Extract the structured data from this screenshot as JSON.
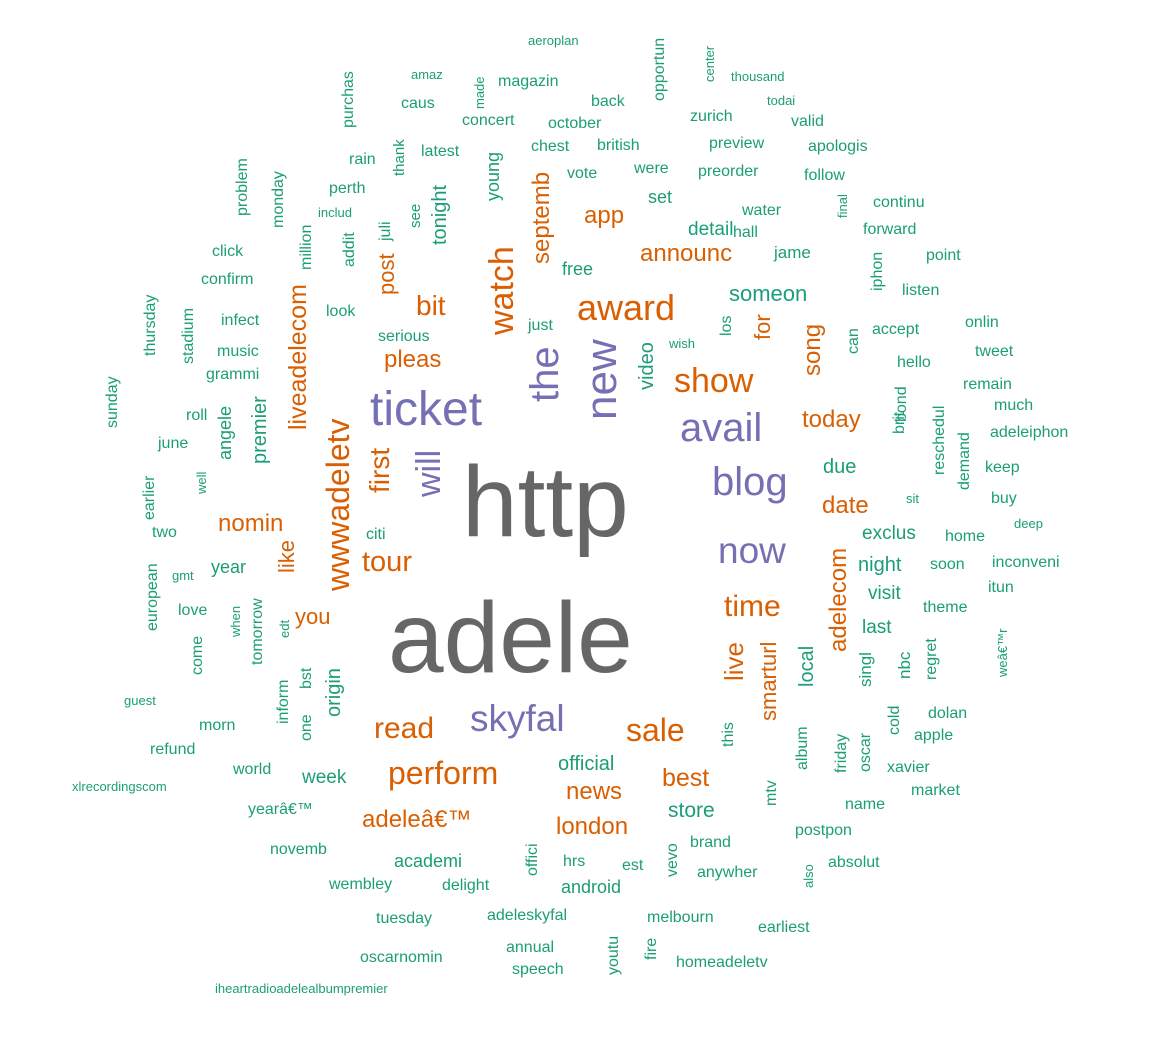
{
  "palette": {
    "background": "#ffffff",
    "teal": "#1b9e77",
    "orange": "#d95f02",
    "purple": "#7570b3",
    "grey": "#666666"
  },
  "wordcloud": {
    "words": [
      {
        "t": "http",
        "c": "#666666"
      },
      {
        "t": "adele",
        "c": "#666666"
      },
      {
        "t": "ticket",
        "c": "#7570b3"
      },
      {
        "t": "the",
        "c": "#7570b3"
      },
      {
        "t": "new",
        "c": "#7570b3"
      },
      {
        "t": "avail",
        "c": "#7570b3"
      },
      {
        "t": "blog",
        "c": "#7570b3"
      },
      {
        "t": "now",
        "c": "#7570b3"
      },
      {
        "t": "skyfal",
        "c": "#7570b3"
      },
      {
        "t": "will",
        "c": "#7570b3"
      },
      {
        "t": "wwwadeletv",
        "c": "#d95f02"
      },
      {
        "t": "award",
        "c": "#d95f02"
      },
      {
        "t": "show",
        "c": "#d95f02"
      },
      {
        "t": "watch",
        "c": "#d95f02"
      },
      {
        "t": "perform",
        "c": "#d95f02"
      },
      {
        "t": "sale",
        "c": "#d95f02"
      },
      {
        "t": "time",
        "c": "#d95f02"
      },
      {
        "t": "read",
        "c": "#d95f02"
      },
      {
        "t": "tour",
        "c": "#d95f02"
      },
      {
        "t": "first",
        "c": "#d95f02"
      },
      {
        "t": "bit",
        "c": "#d95f02"
      },
      {
        "t": "live",
        "c": "#d95f02"
      },
      {
        "t": "liveadelecom",
        "c": "#d95f02"
      },
      {
        "t": "adelecom",
        "c": "#d95f02"
      },
      {
        "t": "pleas",
        "c": "#d95f02"
      },
      {
        "t": "announc",
        "c": "#d95f02"
      },
      {
        "t": "app",
        "c": "#d95f02"
      },
      {
        "t": "septemb",
        "c": "#d95f02"
      },
      {
        "t": "post",
        "c": "#d95f02"
      },
      {
        "t": "date",
        "c": "#d95f02"
      },
      {
        "t": "today",
        "c": "#d95f02"
      },
      {
        "t": "song",
        "c": "#d95f02"
      },
      {
        "t": "for",
        "c": "#d95f02"
      },
      {
        "t": "nomin",
        "c": "#d95f02"
      },
      {
        "t": "like",
        "c": "#d95f02"
      },
      {
        "t": "you",
        "c": "#d95f02"
      },
      {
        "t": "news",
        "c": "#d95f02"
      },
      {
        "t": "best",
        "c": "#d95f02"
      },
      {
        "t": "london",
        "c": "#d95f02"
      },
      {
        "t": "adeleâ€™",
        "c": "#d95f02"
      },
      {
        "t": "smarturl",
        "c": "#d95f02"
      },
      {
        "t": "someon",
        "c": "#1b9e77"
      },
      {
        "t": "video",
        "c": "#1b9e77"
      },
      {
        "t": "due",
        "c": "#1b9e77"
      },
      {
        "t": "detail",
        "c": "#1b9e77"
      },
      {
        "t": "exclus",
        "c": "#1b9e77"
      },
      {
        "t": "night",
        "c": "#1b9e77"
      },
      {
        "t": "visit",
        "c": "#1b9e77"
      },
      {
        "t": "last",
        "c": "#1b9e77"
      },
      {
        "t": "local",
        "c": "#1b9e77"
      },
      {
        "t": "singl",
        "c": "#1b9e77"
      },
      {
        "t": "nbc",
        "c": "#1b9e77"
      },
      {
        "t": "store",
        "c": "#1b9e77"
      },
      {
        "t": "official",
        "c": "#1b9e77"
      },
      {
        "t": "origin",
        "c": "#1b9e77"
      },
      {
        "t": "week",
        "c": "#1b9e77"
      },
      {
        "t": "premier",
        "c": "#1b9e77"
      },
      {
        "t": "angele",
        "c": "#1b9e77"
      },
      {
        "t": "year",
        "c": "#1b9e77"
      },
      {
        "t": "tonight",
        "c": "#1b9e77"
      },
      {
        "t": "young",
        "c": "#1b9e77"
      },
      {
        "t": "set",
        "c": "#1b9e77"
      },
      {
        "t": "free",
        "c": "#1b9e77"
      },
      {
        "t": "jame",
        "c": "#1b9e77"
      },
      {
        "t": "water",
        "c": "#1b9e77"
      },
      {
        "t": "hall",
        "c": "#1b9e77"
      },
      {
        "t": "los",
        "c": "#1b9e77"
      },
      {
        "t": "can",
        "c": "#1b9e77"
      },
      {
        "t": "wish",
        "c": "#1b9e77"
      },
      {
        "t": "just",
        "c": "#1b9e77"
      },
      {
        "t": "serious",
        "c": "#1b9e77"
      },
      {
        "t": "look",
        "c": "#1b9e77"
      },
      {
        "t": "addit",
        "c": "#1b9e77"
      },
      {
        "t": "juli",
        "c": "#1b9e77"
      },
      {
        "t": "see",
        "c": "#1b9e77"
      },
      {
        "t": "million",
        "c": "#1b9e77"
      },
      {
        "t": "includ",
        "c": "#1b9e77"
      },
      {
        "t": "perth",
        "c": "#1b9e77"
      },
      {
        "t": "rain",
        "c": "#1b9e77"
      },
      {
        "t": "thank",
        "c": "#1b9e77"
      },
      {
        "t": "latest",
        "c": "#1b9e77"
      },
      {
        "t": "purchas",
        "c": "#1b9e77"
      },
      {
        "t": "caus",
        "c": "#1b9e77"
      },
      {
        "t": "amaz",
        "c": "#1b9e77"
      },
      {
        "t": "made",
        "c": "#1b9e77"
      },
      {
        "t": "magazin",
        "c": "#1b9e77"
      },
      {
        "t": "aeroplan",
        "c": "#1b9e77"
      },
      {
        "t": "concert",
        "c": "#1b9e77"
      },
      {
        "t": "back",
        "c": "#1b9e77"
      },
      {
        "t": "october",
        "c": "#1b9e77"
      },
      {
        "t": "opportun",
        "c": "#1b9e77"
      },
      {
        "t": "center",
        "c": "#1b9e77"
      },
      {
        "t": "thousand",
        "c": "#1b9e77"
      },
      {
        "t": "todai",
        "c": "#1b9e77"
      },
      {
        "t": "zurich",
        "c": "#1b9e77"
      },
      {
        "t": "valid",
        "c": "#1b9e77"
      },
      {
        "t": "chest",
        "c": "#1b9e77"
      },
      {
        "t": "british",
        "c": "#1b9e77"
      },
      {
        "t": "preview",
        "c": "#1b9e77"
      },
      {
        "t": "apologis",
        "c": "#1b9e77"
      },
      {
        "t": "vote",
        "c": "#1b9e77"
      },
      {
        "t": "were",
        "c": "#1b9e77"
      },
      {
        "t": "preorder",
        "c": "#1b9e77"
      },
      {
        "t": "follow",
        "c": "#1b9e77"
      },
      {
        "t": "final",
        "c": "#1b9e77"
      },
      {
        "t": "continu",
        "c": "#1b9e77"
      },
      {
        "t": "forward",
        "c": "#1b9e77"
      },
      {
        "t": "point",
        "c": "#1b9e77"
      },
      {
        "t": "iphon",
        "c": "#1b9e77"
      },
      {
        "t": "listen",
        "c": "#1b9e77"
      },
      {
        "t": "onlin",
        "c": "#1b9e77"
      },
      {
        "t": "accept",
        "c": "#1b9e77"
      },
      {
        "t": "tweet",
        "c": "#1b9e77"
      },
      {
        "t": "hello",
        "c": "#1b9e77"
      },
      {
        "t": "remain",
        "c": "#1b9e77"
      },
      {
        "t": "much",
        "c": "#1b9e77"
      },
      {
        "t": "adeleiphon",
        "c": "#1b9e77"
      },
      {
        "t": "bond",
        "c": "#1b9e77"
      },
      {
        "t": "brit",
        "c": "#1b9e77"
      },
      {
        "t": "reschedul",
        "c": "#1b9e77"
      },
      {
        "t": "demand",
        "c": "#1b9e77"
      },
      {
        "t": "keep",
        "c": "#1b9e77"
      },
      {
        "t": "buy",
        "c": "#1b9e77"
      },
      {
        "t": "sit",
        "c": "#1b9e77"
      },
      {
        "t": "deep",
        "c": "#1b9e77"
      },
      {
        "t": "home",
        "c": "#1b9e77"
      },
      {
        "t": "inconveni",
        "c": "#1b9e77"
      },
      {
        "t": "soon",
        "c": "#1b9e77"
      },
      {
        "t": "itun",
        "c": "#1b9e77"
      },
      {
        "t": "theme",
        "c": "#1b9e77"
      },
      {
        "t": "weâ€™r",
        "c": "#1b9e77"
      },
      {
        "t": "regret",
        "c": "#1b9e77"
      },
      {
        "t": "dolan",
        "c": "#1b9e77"
      },
      {
        "t": "apple",
        "c": "#1b9e77"
      },
      {
        "t": "cold",
        "c": "#1b9e77"
      },
      {
        "t": "oscar",
        "c": "#1b9e77"
      },
      {
        "t": "xavier",
        "c": "#1b9e77"
      },
      {
        "t": "market",
        "c": "#1b9e77"
      },
      {
        "t": "name",
        "c": "#1b9e77"
      },
      {
        "t": "friday",
        "c": "#1b9e77"
      },
      {
        "t": "album",
        "c": "#1b9e77"
      },
      {
        "t": "mtv",
        "c": "#1b9e77"
      },
      {
        "t": "this",
        "c": "#1b9e77"
      },
      {
        "t": "postpon",
        "c": "#1b9e77"
      },
      {
        "t": "brand",
        "c": "#1b9e77"
      },
      {
        "t": "absolut",
        "c": "#1b9e77"
      },
      {
        "t": "anywher",
        "c": "#1b9e77"
      },
      {
        "t": "also",
        "c": "#1b9e77"
      },
      {
        "t": "vevo",
        "c": "#1b9e77"
      },
      {
        "t": "est",
        "c": "#1b9e77"
      },
      {
        "t": "hrs",
        "c": "#1b9e77"
      },
      {
        "t": "android",
        "c": "#1b9e77"
      },
      {
        "t": "offici",
        "c": "#1b9e77"
      },
      {
        "t": "academi",
        "c": "#1b9e77"
      },
      {
        "t": "delight",
        "c": "#1b9e77"
      },
      {
        "t": "wembley",
        "c": "#1b9e77"
      },
      {
        "t": "novemb",
        "c": "#1b9e77"
      },
      {
        "t": "tuesday",
        "c": "#1b9e77"
      },
      {
        "t": "adeleskyfal",
        "c": "#1b9e77"
      },
      {
        "t": "melbourn",
        "c": "#1b9e77"
      },
      {
        "t": "earliest",
        "c": "#1b9e77"
      },
      {
        "t": "annual",
        "c": "#1b9e77"
      },
      {
        "t": "oscarnomin",
        "c": "#1b9e77"
      },
      {
        "t": "speech",
        "c": "#1b9e77"
      },
      {
        "t": "youtu",
        "c": "#1b9e77"
      },
      {
        "t": "fire",
        "c": "#1b9e77"
      },
      {
        "t": "homeadeletv",
        "c": "#1b9e77"
      },
      {
        "t": "iheartradioadelealbumpremier",
        "c": "#1b9e77"
      },
      {
        "t": "yearâ€™",
        "c": "#1b9e77"
      },
      {
        "t": "world",
        "c": "#1b9e77"
      },
      {
        "t": "refund",
        "c": "#1b9e77"
      },
      {
        "t": "xlrecordingscom",
        "c": "#1b9e77"
      },
      {
        "t": "guest",
        "c": "#1b9e77"
      },
      {
        "t": "morn",
        "c": "#1b9e77"
      },
      {
        "t": "inform",
        "c": "#1b9e77"
      },
      {
        "t": "one",
        "c": "#1b9e77"
      },
      {
        "t": "bst",
        "c": "#1b9e77"
      },
      {
        "t": "edt",
        "c": "#1b9e77"
      },
      {
        "t": "tomorrow",
        "c": "#1b9e77"
      },
      {
        "t": "when",
        "c": "#1b9e77"
      },
      {
        "t": "come",
        "c": "#1b9e77"
      },
      {
        "t": "love",
        "c": "#1b9e77"
      },
      {
        "t": "european",
        "c": "#1b9e77"
      },
      {
        "t": "gmt",
        "c": "#1b9e77"
      },
      {
        "t": "two",
        "c": "#1b9e77"
      },
      {
        "t": "citi",
        "c": "#1b9e77"
      },
      {
        "t": "well",
        "c": "#1b9e77"
      },
      {
        "t": "earlier",
        "c": "#1b9e77"
      },
      {
        "t": "june",
        "c": "#1b9e77"
      },
      {
        "t": "roll",
        "c": "#1b9e77"
      },
      {
        "t": "sunday",
        "c": "#1b9e77"
      },
      {
        "t": "thursday",
        "c": "#1b9e77"
      },
      {
        "t": "stadium",
        "c": "#1b9e77"
      },
      {
        "t": "grammi",
        "c": "#1b9e77"
      },
      {
        "t": "music",
        "c": "#1b9e77"
      },
      {
        "t": "infect",
        "c": "#1b9e77"
      },
      {
        "t": "confirm",
        "c": "#1b9e77"
      },
      {
        "t": "click",
        "c": "#1b9e77"
      },
      {
        "t": "problem",
        "c": "#1b9e77"
      },
      {
        "t": "monday",
        "c": "#1b9e77"
      }
    ]
  }
}
